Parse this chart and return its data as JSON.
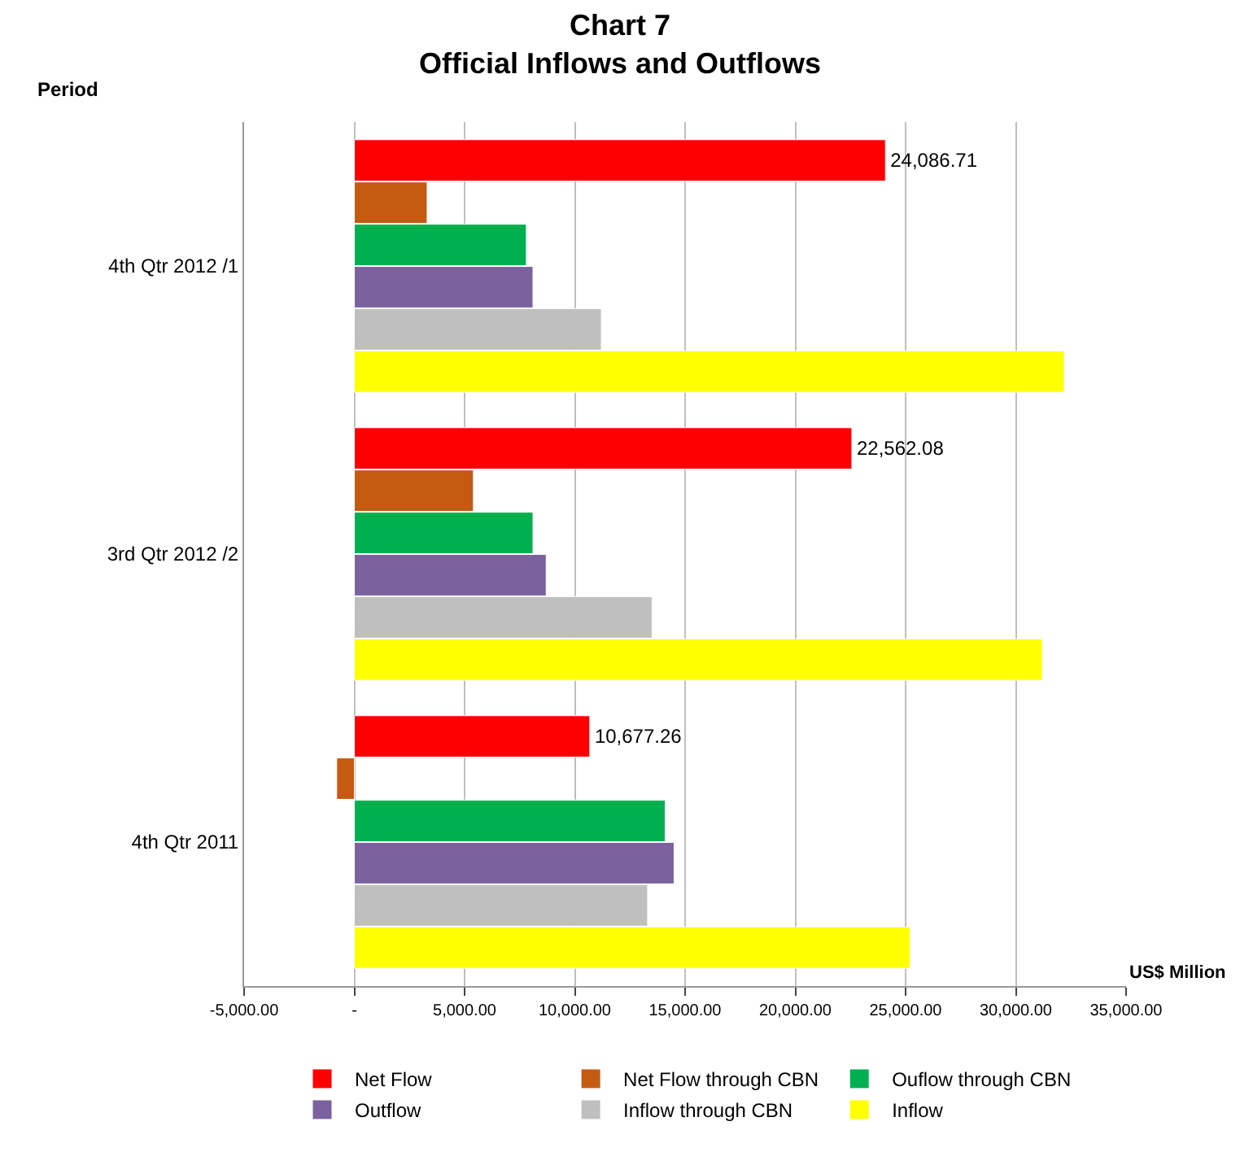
{
  "chart_data": {
    "type": "bar",
    "orientation": "horizontal",
    "title": "Chart 7\nOfficial Inflows and Outflows",
    "xlabel": "US$ Million",
    "ylabel": "Period",
    "categories": [
      "4th Qtr 2012 /1",
      "3rd Qtr 2012 /2",
      "4th Qtr 2011"
    ],
    "series": [
      {
        "name": "Net Flow",
        "color": "#ff0000",
        "values": [
          24086.71,
          22562.08,
          10677.26
        ],
        "value_labels": [
          "24,086.71",
          "22,562.08",
          "10,677.26"
        ]
      },
      {
        "name": "Net Flow through CBN",
        "color": "#c55a11",
        "values": [
          3300,
          5400,
          -800
        ]
      },
      {
        "name": "Ouflow through CBN",
        "color": "#00b050",
        "values": [
          7800,
          8100,
          14100
        ]
      },
      {
        "name": "Outflow",
        "color": "#7b629e",
        "values": [
          8100,
          8700,
          14500
        ]
      },
      {
        "name": "Inflow through CBN",
        "color": "#bfbfbf",
        "values": [
          11200,
          13500,
          13300
        ]
      },
      {
        "name": "Inflow",
        "color": "#ffff00",
        "values": [
          32200,
          31200,
          25200
        ]
      }
    ],
    "xlim": [
      -5000,
      35000
    ],
    "xticks": [
      {
        "value": -5000,
        "label": "-5,000.00"
      },
      {
        "value": 0,
        "label": "-"
      },
      {
        "value": 5000,
        "label": "5,000.00"
      },
      {
        "value": 10000,
        "label": "10,000.00"
      },
      {
        "value": 15000,
        "label": "15,000.00"
      },
      {
        "value": 20000,
        "label": "20,000.00"
      },
      {
        "value": 25000,
        "label": "25,000.00"
      },
      {
        "value": 30000,
        "label": "30,000.00"
      },
      {
        "value": 35000,
        "label": "35,000.00"
      }
    ],
    "grid": "x",
    "legend": "bottom"
  }
}
